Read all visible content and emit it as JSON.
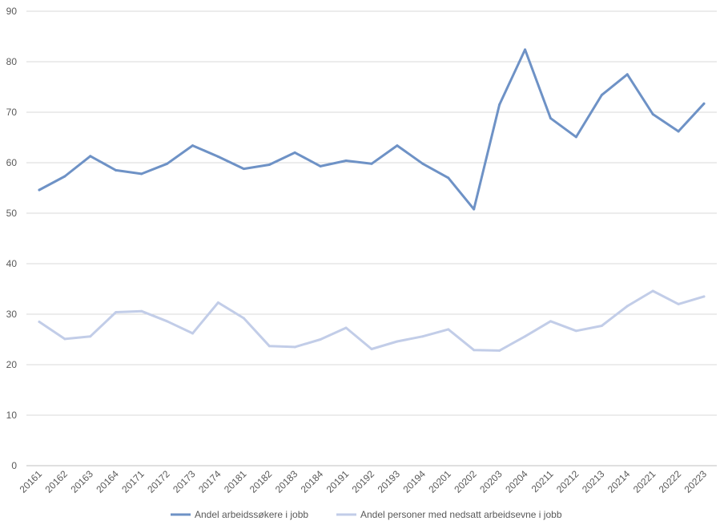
{
  "chart_data": {
    "type": "line",
    "title": "",
    "xlabel": "",
    "ylabel": "",
    "ylim": [
      0,
      90
    ],
    "yticks": [
      0,
      10,
      20,
      30,
      40,
      50,
      60,
      70,
      80,
      90
    ],
    "grid": true,
    "legend_position": "bottom",
    "categories": [
      "20161",
      "20162",
      "20163",
      "20164",
      "20171",
      "20172",
      "20173",
      "20174",
      "20181",
      "20182",
      "20183",
      "20184",
      "20191",
      "20192",
      "20193",
      "20194",
      "20201",
      "20202",
      "20203",
      "20204",
      "20211",
      "20212",
      "20213",
      "20214",
      "20221",
      "20222",
      "20223"
    ],
    "series": [
      {
        "name": "Andel arbeidssøkere i jobb",
        "color": "#6e92c6",
        "values": [
          54.6,
          57.3,
          61.3,
          58.5,
          57.8,
          59.8,
          63.4,
          61.2,
          58.8,
          59.6,
          62.0,
          59.3,
          60.4,
          59.8,
          63.4,
          59.8,
          57.0,
          50.8,
          71.5,
          82.4,
          68.8,
          65.1,
          73.4,
          77.5,
          69.6,
          66.2,
          71.7
        ]
      },
      {
        "name": "Andel personer med nedsatt arbeidsevne i jobb",
        "color": "#c2cde8",
        "values": [
          28.5,
          25.1,
          25.6,
          30.4,
          30.6,
          28.6,
          26.2,
          32.3,
          29.2,
          23.7,
          23.5,
          25.0,
          27.3,
          23.1,
          24.6,
          25.6,
          27.0,
          22.9,
          22.8,
          25.6,
          28.6,
          26.7,
          27.7,
          31.6,
          34.6,
          32.0,
          33.5
        ]
      }
    ]
  }
}
